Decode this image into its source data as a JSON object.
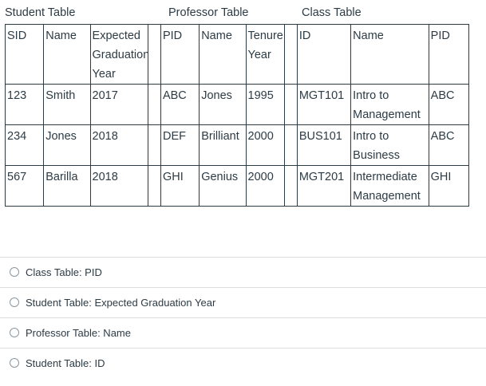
{
  "figure": {
    "titles": {
      "student": "Student Table",
      "professor": "Professor Table",
      "class": "Class Table"
    },
    "headers": {
      "student": [
        "SID",
        "Name",
        "Expected Graduation Year"
      ],
      "professor": [
        "PID",
        "Name",
        "Tenure Year"
      ],
      "class": [
        "ID",
        "Name",
        "PID"
      ]
    },
    "rows": [
      {
        "student": [
          "123",
          "Smith",
          "2017"
        ],
        "professor": [
          "ABC",
          "Jones",
          "1995"
        ],
        "class": [
          "MGT101",
          "Intro to Management",
          "ABC"
        ]
      },
      {
        "student": [
          "234",
          "Jones",
          "2018"
        ],
        "professor": [
          "DEF",
          "Brilliant",
          "2000"
        ],
        "class": [
          "BUS101",
          "Intro to Business",
          "ABC"
        ]
      },
      {
        "student": [
          "567",
          "Barilla",
          "2018"
        ],
        "professor": [
          "GHI",
          "Genius",
          "2000"
        ],
        "class": [
          "MGT201",
          "Intermediate Management",
          "GHI"
        ]
      }
    ]
  },
  "options": [
    {
      "label": "Class Table: PID"
    },
    {
      "label": "Student Table: Expected Graduation Year"
    },
    {
      "label": "Professor Table: Name"
    },
    {
      "label": "Student Table: ID"
    }
  ],
  "colors": {
    "text": "#2d3b45",
    "divider": "#dcdfe2",
    "radio_border": "#8b969e"
  }
}
